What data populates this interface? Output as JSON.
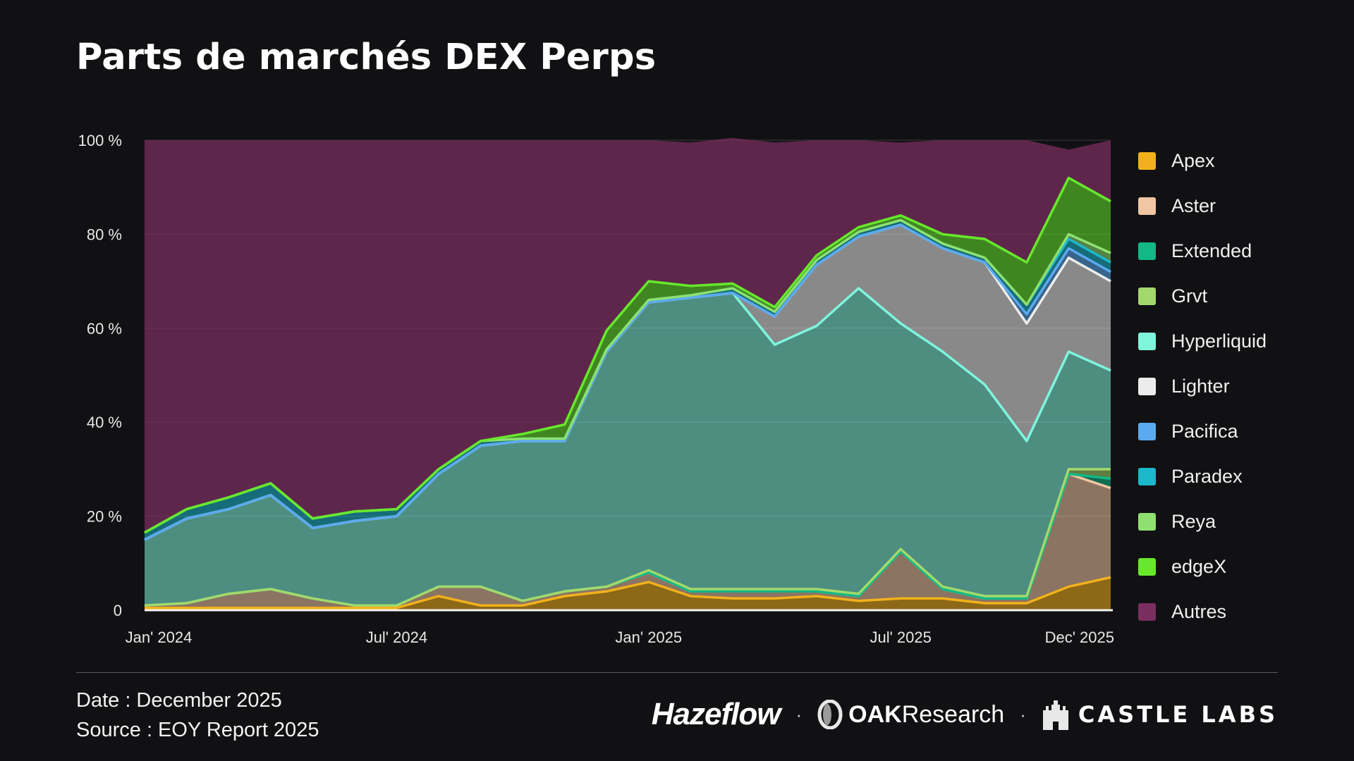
{
  "title": "Parts de marchés DEX Perps",
  "footer": {
    "date": "Date : December 2025",
    "source": "Source : EOY Report 2025"
  },
  "brands": {
    "hazeflow": "Hazeflow",
    "sep": "·",
    "oak_strong": "OAK",
    "oak_rest": "Research",
    "castle": "CASTLE LABS"
  },
  "chart_data": {
    "type": "area",
    "stacked": true,
    "yunit": "%",
    "ylim": [
      0,
      100
    ],
    "yticks": [
      {
        "value": 0,
        "label": "0"
      },
      {
        "value": 20,
        "label": "20 %"
      },
      {
        "value": 40,
        "label": "40 %"
      },
      {
        "value": 60,
        "label": "60 %"
      },
      {
        "value": 80,
        "label": "80 %"
      },
      {
        "value": 100,
        "label": "100 %"
      }
    ],
    "xticks": [
      {
        "x": "2024-01",
        "label": "Jan' 2024"
      },
      {
        "x": "2024-07",
        "label": "Jul' 2024"
      },
      {
        "x": "2025-01",
        "label": "Jan' 2025"
      },
      {
        "x": "2025-07",
        "label": "Jul' 2025"
      },
      {
        "x": "2025-12",
        "label": "Dec' 2025"
      }
    ],
    "x": [
      "2024-01",
      "2024-02",
      "2024-03",
      "2024-04",
      "2024-05",
      "2024-06",
      "2024-07",
      "2024-08",
      "2024-09",
      "2024-10",
      "2024-11",
      "2024-12",
      "2025-01",
      "2025-02",
      "2025-03",
      "2025-04",
      "2025-05",
      "2025-06",
      "2025-07",
      "2025-08",
      "2025-09",
      "2025-10",
      "2025-11",
      "2025-12"
    ],
    "legend_position": "right",
    "grid": true,
    "series": [
      {
        "name": "Apex",
        "color": "#f2b11c",
        "values": [
          0.5,
          0.5,
          0.5,
          0.5,
          0.5,
          0.5,
          0.5,
          3,
          1,
          1,
          3,
          4,
          6,
          3,
          2.5,
          2.5,
          3,
          2,
          2.5,
          2.5,
          1.5,
          1.5,
          5,
          7
        ]
      },
      {
        "name": "Aster",
        "color": "#f1c6a2",
        "values": [
          0.5,
          1,
          3,
          4,
          2,
          0.5,
          0.5,
          2,
          4,
          1,
          1,
          1,
          2,
          1,
          1.5,
          1.5,
          1,
          1,
          10,
          2,
          1,
          1,
          24,
          19
        ]
      },
      {
        "name": "Extended",
        "color": "#12b886",
        "values": [
          0,
          0,
          0,
          0,
          0,
          0,
          0,
          0,
          0,
          0,
          0,
          0,
          0,
          0,
          0,
          0,
          0,
          0,
          0,
          0,
          0,
          0,
          0,
          2
        ]
      },
      {
        "name": "Grvt",
        "color": "#a3d96b",
        "values": [
          0,
          0,
          0,
          0,
          0,
          0,
          0,
          0,
          0,
          0,
          0,
          0,
          0.5,
          0.5,
          0.5,
          0.5,
          0.5,
          0.5,
          0.5,
          0.5,
          0.5,
          0.5,
          1,
          2
        ]
      },
      {
        "name": "Hyperliquid",
        "color": "#7ff5dc",
        "values": [
          14,
          18,
          18,
          20,
          15,
          18,
          19,
          24,
          30,
          34,
          32,
          50,
          57,
          62,
          63,
          52,
          56,
          65,
          48,
          50,
          45,
          33,
          25,
          21
        ]
      },
      {
        "name": "Lighter",
        "color": "#ececec",
        "values": [
          0,
          0,
          0,
          0,
          0,
          0,
          0,
          0,
          0,
          0,
          0,
          0,
          0,
          0,
          0,
          6,
          13,
          11,
          21,
          22,
          26,
          25,
          20,
          19
        ]
      },
      {
        "name": "Pacifica",
        "color": "#5aaaf0",
        "values": [
          0,
          0,
          0,
          0,
          0,
          0,
          0,
          0,
          0,
          0,
          0,
          0,
          0,
          0,
          0,
          0,
          0,
          0,
          0,
          0,
          0,
          2,
          2,
          2
        ]
      },
      {
        "name": "Paradex",
        "color": "#1cb8cc",
        "values": [
          1.5,
          2,
          2.5,
          2.5,
          2,
          2,
          1.5,
          1,
          1,
          0.5,
          0.5,
          0.5,
          0.5,
          0.5,
          1,
          1,
          1,
          1,
          1,
          1,
          1,
          2,
          2,
          2
        ]
      },
      {
        "name": "Reya",
        "color": "#8ee070",
        "values": [
          0,
          0,
          0,
          0,
          0,
          0,
          0,
          0,
          0,
          0,
          0,
          0,
          0,
          0,
          0,
          0,
          0,
          0,
          0,
          0,
          0,
          0,
          1,
          2
        ]
      },
      {
        "name": "edgeX",
        "color": "#67e82c",
        "values": [
          0,
          0,
          0,
          0,
          0,
          0,
          0,
          0,
          0,
          1,
          3,
          4,
          4,
          2,
          1,
          1,
          1,
          1,
          1,
          2,
          4,
          9,
          12,
          11
        ]
      },
      {
        "name": "Autres",
        "color": "#7a2e60",
        "values": [
          83.5,
          78.5,
          76,
          73,
          80.5,
          79,
          78.5,
          70,
          64,
          62.5,
          60.5,
          40.5,
          30,
          30.5,
          31,
          35,
          24.5,
          18.5,
          15.5,
          20,
          21,
          26,
          6,
          13
        ]
      }
    ]
  }
}
